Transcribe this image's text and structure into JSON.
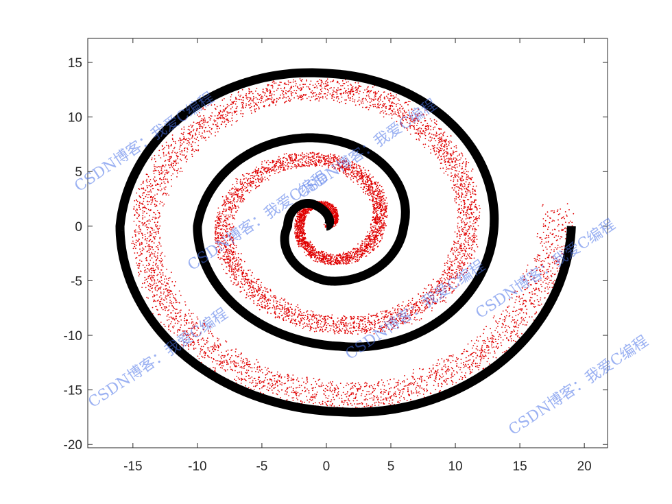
{
  "chart_data": {
    "type": "scatter",
    "title": "",
    "xlabel": "",
    "ylabel": "",
    "xlim": [
      -18.5,
      21.8
    ],
    "ylim": [
      -20.3,
      17.2
    ],
    "x_ticks": [
      -15,
      -10,
      -5,
      0,
      5,
      10,
      15,
      20
    ],
    "y_ticks": [
      15,
      10,
      5,
      0,
      -5,
      -10,
      -15,
      -20
    ],
    "grid": false,
    "legend": "none",
    "series": [
      {
        "style": "thick-line",
        "color": "#000000",
        "description_points": [
          [
            0,
            0
          ],
          [
            -1,
            2
          ],
          [
            -3,
            0
          ],
          [
            0,
            -5
          ],
          [
            6,
            0
          ],
          [
            0,
            8
          ],
          [
            -10,
            0
          ],
          [
            1,
            -11
          ],
          [
            13,
            0
          ],
          [
            0,
            14
          ],
          [
            -16,
            0
          ],
          [
            1,
            -17
          ],
          [
            19,
            0
          ]
        ]
      },
      {
        "style": "dotted-scatter",
        "color": "#e00000",
        "points_estimate": [
          [
            0.5,
            0.5
          ],
          [
            0,
            2
          ],
          [
            -2,
            0.5
          ],
          [
            0,
            -3
          ],
          [
            4,
            0
          ],
          [
            0,
            6
          ],
          [
            -8,
            0
          ],
          [
            1,
            -9
          ],
          [
            11,
            0
          ],
          [
            0,
            12.5
          ],
          [
            -14,
            0
          ],
          [
            1,
            -15.5
          ],
          [
            18,
            1
          ]
        ]
      }
    ],
    "watermarks": [
      "CSDN博客：我爱C编程",
      "CSDN博客：我爱C编程",
      "CSDN博客：我爱C编程",
      "CSDN博客：我爱C编程",
      "CSDN博客：我爱C编程",
      "CSDN博客：我爱C编程",
      "CSDN博客：我爱C编程"
    ]
  }
}
